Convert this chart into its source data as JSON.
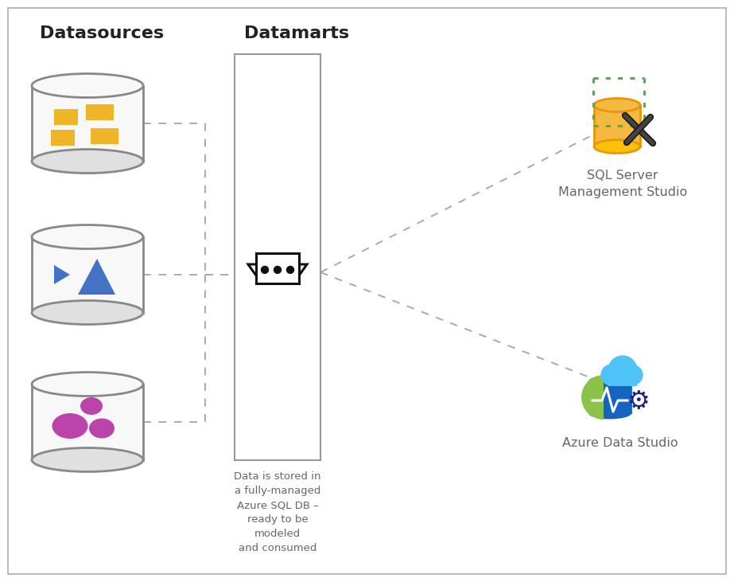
{
  "title_datasources": "Datasources",
  "title_datamarts": "Datamarts",
  "title_sql": "SQL Server\nManagement Studio",
  "title_azure": "Azure Data Studio",
  "annotation_text": "Data is stored in\na fully-managed\nAzure SQL DB –\nready to be\nmodeled\nand consumed",
  "bg_color": "#ffffff",
  "border_color": "#bbbbbb",
  "dashed_color": "#aaaaaa",
  "text_color": "#666666",
  "title_color": "#222222",
  "cyl_face": "#f8f8f8",
  "cyl_edge": "#888888",
  "cyl_top": "#e0e0e0",
  "cylinder1_icon_color": "#F0B429",
  "cylinder2_icon_blue": "#4472C4",
  "cylinder3_icon_color": "#BB44AA",
  "sql_orange": "#E8960A",
  "sql_orange_light": "#F5B942",
  "sql_dark": "#2a2a2a",
  "green_dot_color": "#4CAF50",
  "azure_blue": "#1565C0",
  "azure_blue_light": "#42A5F5",
  "azure_cyan": "#4FC3F7",
  "azure_green": "#8BC34A",
  "azure_gear": "#1A237E",
  "store_color": "#111111"
}
